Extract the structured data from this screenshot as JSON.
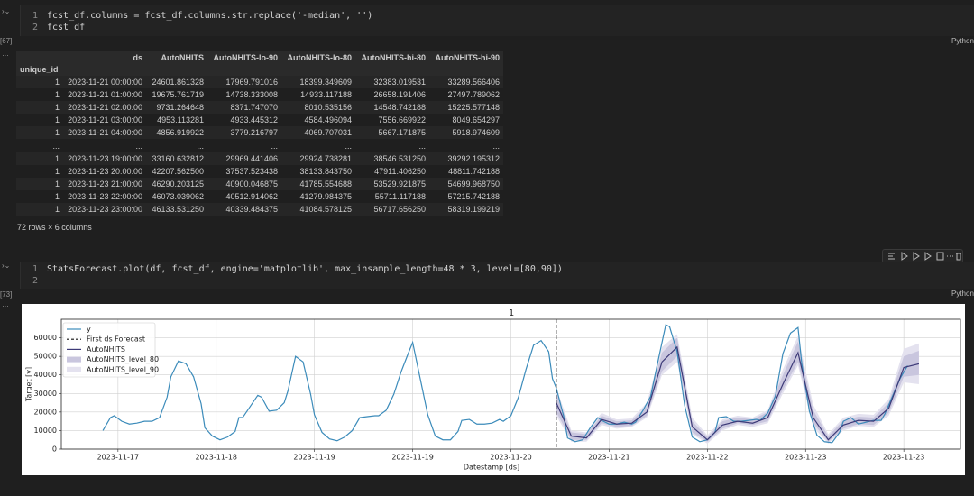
{
  "cells": [
    {
      "count": "[67]",
      "lang": "Python",
      "line_numbers": [
        "1",
        "2"
      ],
      "code": [
        "fcst_df.columns = fcst_df.columns.str.replace('-median', '')",
        "fcst_df"
      ],
      "table": {
        "index_name": "unique_id",
        "columns": [
          "ds",
          "AutoNHITS",
          "AutoNHITS-lo-90",
          "AutoNHITS-lo-80",
          "AutoNHITS-hi-80",
          "AutoNHITS-hi-90"
        ],
        "rows": [
          [
            "1",
            "2023-11-21 00:00:00",
            "24601.861328",
            "17969.791016",
            "18399.349609",
            "32383.019531",
            "33289.566406"
          ],
          [
            "1",
            "2023-11-21 01:00:00",
            "19675.761719",
            "14738.333008",
            "14933.117188",
            "26658.191406",
            "27497.789062"
          ],
          [
            "1",
            "2023-11-21 02:00:00",
            "9731.264648",
            "8371.747070",
            "8010.535156",
            "14548.742188",
            "15225.577148"
          ],
          [
            "1",
            "2023-11-21 03:00:00",
            "4953.113281",
            "4933.445312",
            "4584.496094",
            "7556.669922",
            "8049.654297"
          ],
          [
            "1",
            "2023-11-21 04:00:00",
            "4856.919922",
            "3779.216797",
            "4069.707031",
            "5667.171875",
            "5918.974609"
          ],
          [
            "...",
            "...",
            "...",
            "...",
            "...",
            "...",
            "..."
          ],
          [
            "1",
            "2023-11-23 19:00:00",
            "33160.632812",
            "29969.441406",
            "29924.738281",
            "38546.531250",
            "39292.195312"
          ],
          [
            "1",
            "2023-11-23 20:00:00",
            "42207.562500",
            "37537.523438",
            "38133.843750",
            "47911.406250",
            "48811.742188"
          ],
          [
            "1",
            "2023-11-23 21:00:00",
            "46290.203125",
            "40900.046875",
            "41785.554688",
            "53529.921875",
            "54699.968750"
          ],
          [
            "1",
            "2023-11-23 22:00:00",
            "46073.039062",
            "40512.914062",
            "41279.984375",
            "55711.117188",
            "57215.742188"
          ],
          [
            "1",
            "2023-11-23 23:00:00",
            "46133.531250",
            "40339.484375",
            "41084.578125",
            "56717.656250",
            "58319.199219"
          ]
        ]
      },
      "summary": "72 rows × 6 columns"
    },
    {
      "count": "[73]",
      "lang": "Python",
      "line_numbers": [
        "1",
        "2"
      ],
      "code": [
        "StatsForecast.plot(df, fcst_df, engine='matplotlib', max_insample_length=48 * 3, level=[80,90])"
      ]
    }
  ],
  "chart_data": {
    "type": "line",
    "title": "1",
    "x_label": "Datestamp [ds]",
    "y_label": "Target [y]",
    "xlim": [
      -11,
      227
    ],
    "ylim": [
      0,
      70000
    ],
    "grid": true,
    "legend": "upper left",
    "xticks": [
      {
        "value": 4,
        "label": "2023-11-17"
      },
      {
        "value": 30,
        "label": "2023-11-18"
      },
      {
        "value": 56,
        "label": "2023-11-19"
      },
      {
        "value": 82,
        "label": "2023-11-19"
      },
      {
        "value": 108,
        "label": "2023-11-20"
      },
      {
        "value": 134,
        "label": "2023-11-21"
      },
      {
        "value": 160,
        "label": "2023-11-22"
      },
      {
        "value": 186,
        "label": "2023-11-23"
      },
      {
        "value": 212,
        "label": "2023-11-23"
      }
    ],
    "yticks": [
      0,
      10000,
      20000,
      30000,
      40000,
      50000,
      60000
    ],
    "series": [
      {
        "name": "y",
        "color": "#3b8bba",
        "x": [
          0,
          2,
          3,
          5,
          7,
          9,
          11,
          13,
          15,
          17,
          18,
          20,
          22,
          24,
          26,
          27,
          29,
          31,
          33,
          35,
          36,
          37,
          39,
          41,
          42,
          44,
          46,
          48,
          49,
          51,
          53,
          55,
          56,
          58,
          60,
          62,
          64,
          66,
          68,
          70,
          72,
          73,
          75,
          77,
          79,
          81,
          82,
          84,
          86,
          88,
          90,
          92,
          94,
          95,
          97,
          99,
          101,
          103,
          105,
          106,
          108,
          110,
          112,
          114,
          116,
          118,
          119,
          120,
          122,
          123,
          125,
          127,
          129,
          131,
          132,
          134,
          136,
          138,
          140,
          141,
          143,
          145,
          147,
          149,
          150,
          152,
          154,
          156,
          158,
          160,
          162,
          163,
          165,
          167,
          169,
          171,
          173,
          174,
          176,
          178,
          180,
          182,
          184,
          185,
          187,
          189,
          191,
          193,
          195,
          196,
          198,
          200,
          202,
          204,
          206,
          207,
          209,
          211,
          213
        ],
        "values": [
          10000,
          17000,
          18000,
          15000,
          13500,
          14000,
          15000,
          15000,
          17000,
          28000,
          39000,
          47500,
          46000,
          39000,
          24500,
          11500,
          7000,
          5000,
          6500,
          9500,
          17000,
          17000,
          23000,
          29000,
          28000,
          20500,
          21000,
          25000,
          31500,
          50000,
          47000,
          29500,
          18500,
          9000,
          5500,
          4500,
          6500,
          10000,
          17000,
          17500,
          18000,
          18000,
          21000,
          29500,
          42000,
          52500,
          57500,
          38000,
          18500,
          7000,
          5000,
          5000,
          9500,
          15500,
          16000,
          13500,
          13500,
          14000,
          16000,
          15000,
          18000,
          28000,
          43000,
          56000,
          58500,
          52500,
          38000,
          33000,
          17500,
          6000,
          4000,
          5000,
          11500,
          17000,
          15500,
          13500,
          13500,
          14500,
          13500,
          14500,
          21000,
          28500,
          48000,
          67000,
          66000,
          52500,
          23500,
          6500,
          4000,
          5000,
          9000,
          17000,
          17500,
          15000,
          15000,
          15500,
          16000,
          15500,
          19500,
          28500,
          51500,
          62500,
          65500,
          46000,
          20500,
          7500,
          4000,
          3500,
          9000,
          15000,
          17000,
          13500,
          14500,
          15500,
          15500,
          19000,
          28500,
          38000,
          45000
        ]
      },
      {
        "name": "AutoNHITS",
        "color": "#3d3a78",
        "x": [
          120,
          124,
          128,
          132,
          136,
          140,
          144,
          148,
          152,
          156,
          160,
          164,
          168,
          172,
          176,
          180,
          184,
          188,
          192,
          196,
          200,
          204,
          208,
          212,
          216
        ],
        "values": [
          25000,
          7000,
          6000,
          16000,
          13500,
          14000,
          20000,
          47000,
          55000,
          12000,
          5000,
          13000,
          15000,
          14000,
          17000,
          35000,
          52000,
          17000,
          5000,
          13000,
          15500,
          15000,
          22000,
          44000,
          46000
        ]
      }
    ],
    "vline": {
      "label": "First ds Forecast",
      "x": 120,
      "color": "#111111"
    },
    "bands": [
      {
        "name": "AutoNHITS_level_80",
        "color": "#c9c6de",
        "lower": [
          20000,
          5000,
          5000,
          14000,
          12000,
          12500,
          18000,
          42000,
          50000,
          9000,
          4000,
          11000,
          14000,
          13000,
          15000,
          32000,
          47000,
          14000,
          4000,
          11000,
          13500,
          13000,
          19500,
          39000,
          40000
        ],
        "upper": [
          30000,
          9000,
          8000,
          18000,
          15000,
          15500,
          23000,
          52000,
          60000,
          15000,
          6500,
          15000,
          17000,
          16000,
          20000,
          40000,
          58000,
          21000,
          7000,
          15500,
          17500,
          17000,
          25000,
          50000,
          53000
        ]
      },
      {
        "name": "AutoNHITS_level_90",
        "color": "#e4e2ef",
        "lower": [
          18000,
          4000,
          4000,
          13000,
          11000,
          12000,
          17000,
          40000,
          47000,
          8000,
          3000,
          10000,
          13000,
          12000,
          14000,
          30000,
          45000,
          12000,
          3000,
          10000,
          12500,
          12000,
          18000,
          36000,
          35000
        ],
        "upper": [
          33000,
          10000,
          9000,
          19500,
          16000,
          16500,
          25000,
          55000,
          62000,
          17000,
          7500,
          16000,
          18000,
          17000,
          21000,
          43000,
          61000,
          24000,
          8000,
          17000,
          19000,
          18500,
          27000,
          54000,
          57000
        ]
      }
    ]
  }
}
